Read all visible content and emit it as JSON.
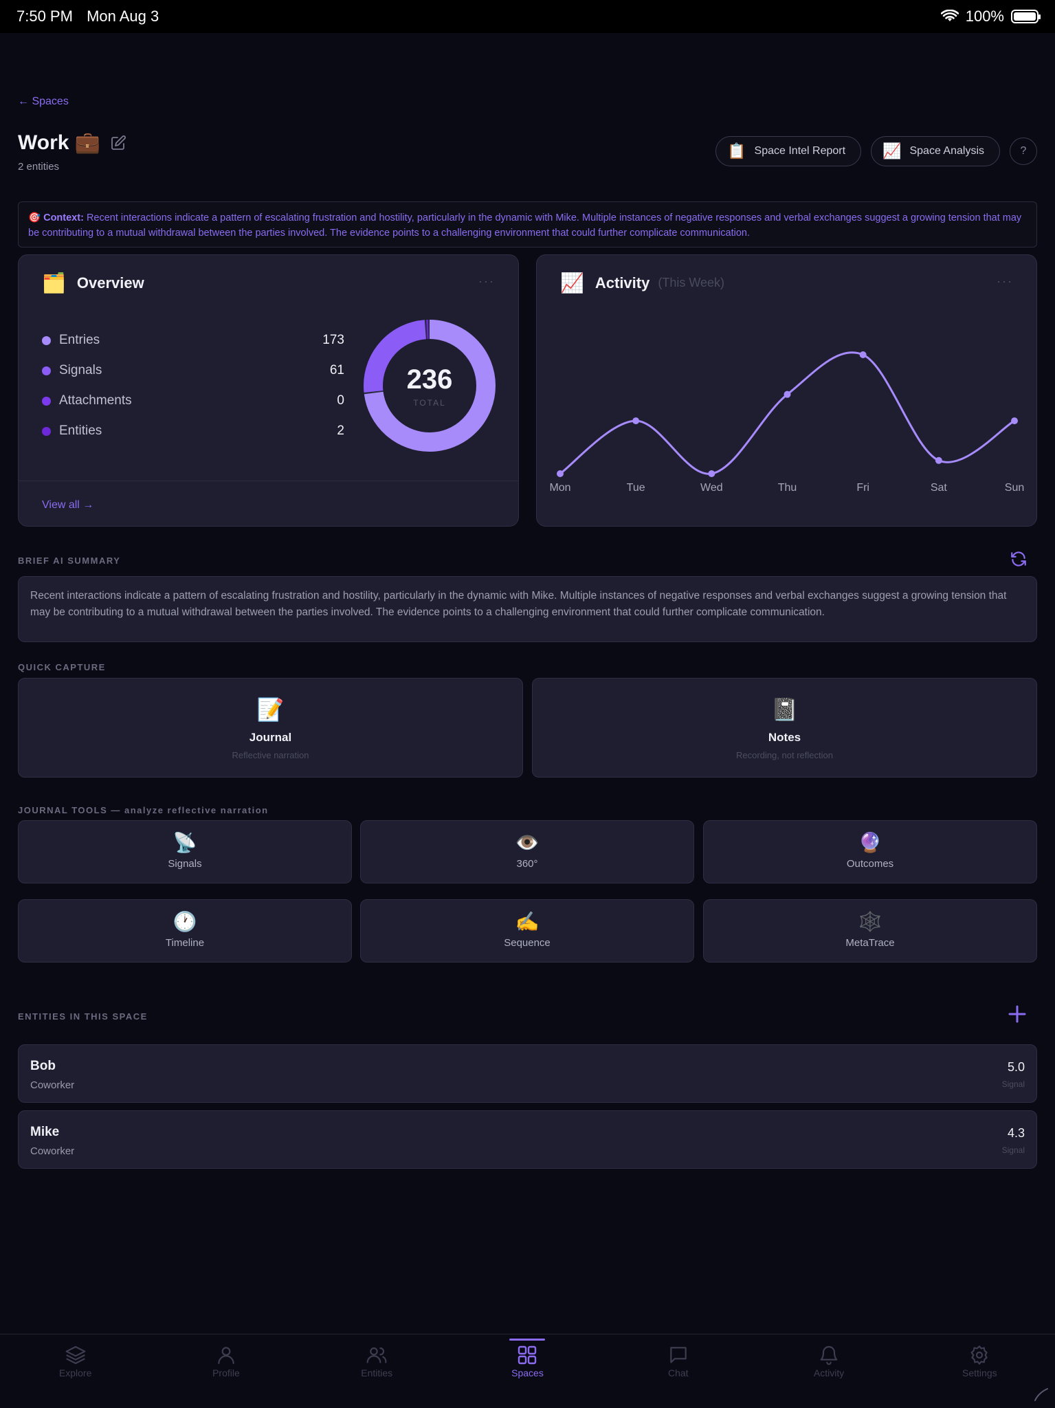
{
  "status_bar": {
    "time": "7:50 PM",
    "date": "Mon Aug 3",
    "battery": "100%"
  },
  "nav": {
    "back_label": "← Spaces"
  },
  "header": {
    "title": "Work 💼",
    "subtitle": "2 entities",
    "actions": [
      {
        "icon": "📋",
        "label": "Space Intel Report"
      },
      {
        "icon": "📈",
        "label": "Space Analysis"
      }
    ],
    "help_label": "?"
  },
  "context": {
    "icon": "🎯",
    "label": "Context:",
    "text": "Recent interactions indicate a pattern of escalating frustration and hostility, particularly in the dynamic with Mike. Multiple instances of negative responses and verbal exchanges suggest a growing tension that may be contributing to a mutual withdrawal between the parties involved. The evidence points to a challenging environment that could further complicate communication."
  },
  "overview": {
    "icon": "🗂️",
    "title": "Overview",
    "more": "···",
    "items": [
      {
        "label": "Entries",
        "value": "173",
        "color": "#a78bfa"
      },
      {
        "label": "Signals",
        "value": "61",
        "color": "#8b5cf6"
      },
      {
        "label": "Attachments",
        "value": "0",
        "color": "#7c3aed"
      },
      {
        "label": "Entities",
        "value": "2",
        "color": "#6d28d9"
      }
    ],
    "total": "236",
    "total_caption": "TOTAL",
    "view_all": "View all →"
  },
  "activity": {
    "icon": "📈",
    "title": "Activity",
    "subtitle": "(This Week)",
    "more": "···"
  },
  "chart_data": {
    "type": "line",
    "categories": [
      "Mon",
      "Tue",
      "Wed",
      "Thu",
      "Fri",
      "Sat",
      "Sun"
    ],
    "values": [
      0,
      4,
      0,
      6,
      9,
      1,
      4
    ],
    "color": "#a78bfa",
    "grid": false
  },
  "summary": {
    "label": "BRIEF AI SUMMARY",
    "text": "Recent interactions indicate a pattern of escalating frustration and hostility, particularly in the dynamic with Mike. Multiple instances of negative responses and verbal exchanges suggest a growing tension that may be contributing to a mutual withdrawal between the parties involved. The evidence points to a challenging environment that could further complicate communication."
  },
  "quick_capture": {
    "label": "QUICK CAPTURE",
    "items": [
      {
        "icon": "📝",
        "title": "Journal",
        "subtitle": "Reflective narration"
      },
      {
        "icon": "📓",
        "title": "Notes",
        "subtitle": "Recording, not reflection"
      }
    ]
  },
  "journal_tools": {
    "label": "JOURNAL TOOLS — analyze reflective narration",
    "items": [
      {
        "icon": "📡",
        "label": "Signals"
      },
      {
        "icon": "👁️",
        "label": "360°"
      },
      {
        "icon": "🔮",
        "label": "Outcomes"
      },
      {
        "icon": "🕐",
        "label": "Timeline"
      },
      {
        "icon": "✍️",
        "label": "Sequence"
      },
      {
        "icon": "🕸️",
        "label": "MetaTrace"
      }
    ]
  },
  "entities": {
    "label": "ENTITIES IN THIS SPACE",
    "items": [
      {
        "name": "Bob",
        "role": "Coworker",
        "score": "5.0",
        "score_label": "Signal"
      },
      {
        "name": "Mike",
        "role": "Coworker",
        "score": "4.3",
        "score_label": "Signal"
      }
    ]
  },
  "tabs": [
    {
      "label": "Explore",
      "icon": "layers-icon"
    },
    {
      "label": "Profile",
      "icon": "person-icon"
    },
    {
      "label": "Entities",
      "icon": "people-icon"
    },
    {
      "label": "Spaces",
      "icon": "grid-icon",
      "active": true
    },
    {
      "label": "Chat",
      "icon": "chat-icon"
    },
    {
      "label": "Activity",
      "icon": "bell-icon"
    },
    {
      "label": "Settings",
      "icon": "gear-icon"
    }
  ]
}
